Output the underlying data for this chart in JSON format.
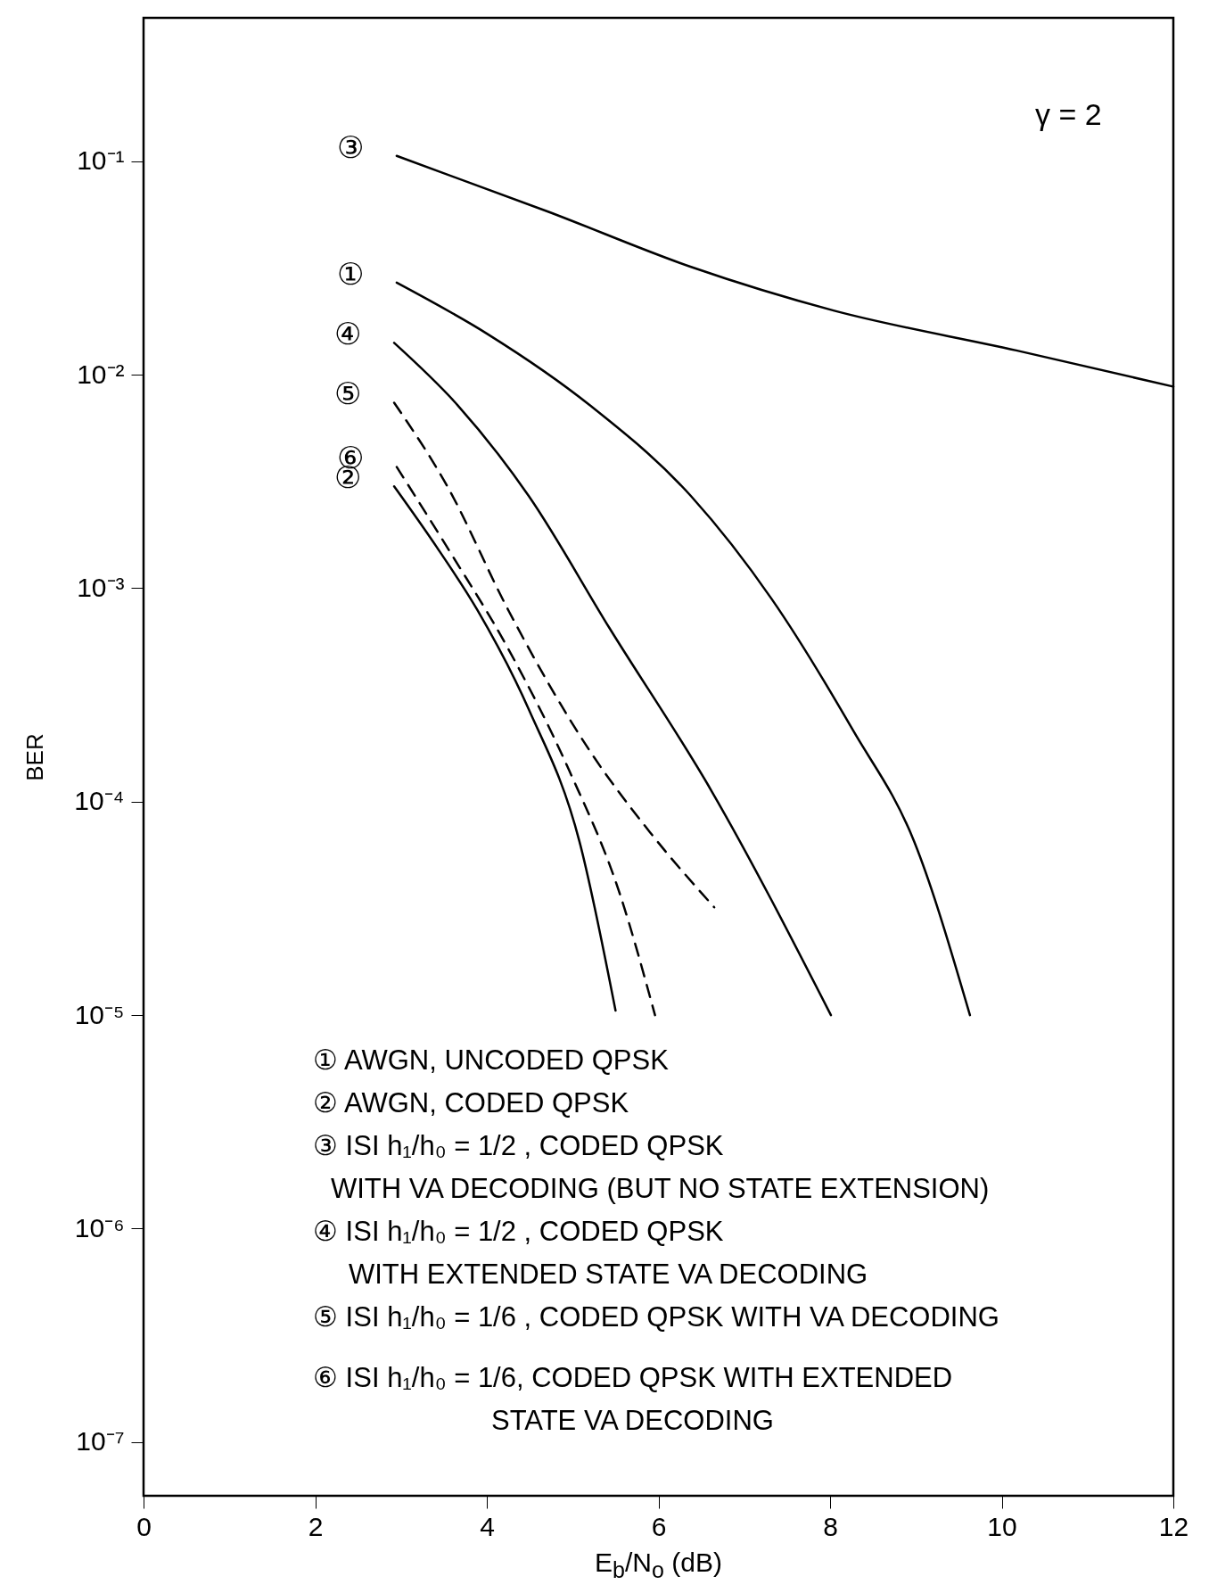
{
  "chart_data": {
    "type": "line",
    "xlabel": "E$_{b}$/N$_{o}$ (dB)",
    "ylabel": "BER",
    "log": "y",
    "xlim": [
      0,
      12
    ],
    "xticks": [
      0,
      2,
      4,
      6,
      8,
      10,
      12
    ],
    "ylim": [
      5.6e-08,
      0.47
    ],
    "yticks": [
      {
        "value": 1e-07,
        "label": "10⁻⁷"
      },
      {
        "value": 1e-06,
        "label": "10⁻⁶"
      },
      {
        "value": 1e-05,
        "label": "10⁻⁵"
      },
      {
        "value": 0.0001,
        "label": "10⁻⁴"
      },
      {
        "value": 0.001,
        "label": "10⁻³"
      },
      {
        "value": 0.01,
        "label": "10⁻²"
      },
      {
        "value": 0.1,
        "label": "10⁻¹"
      }
    ],
    "grid": false,
    "marker": "none",
    "series": [
      {
        "name": "③",
        "color": "#000000",
        "line_style": "solid",
        "x": [
          2.95,
          4.72,
          6.38,
          8.04,
          10.17,
          12
        ],
        "values": [
          0.106,
          0.058,
          0.032,
          0.02,
          0.013,
          0.0088
        ]
      },
      {
        "name": "①",
        "color": "#000000",
        "line_style": "solid",
        "x": [
          2.95,
          4.01,
          5.2,
          6.38,
          7.32,
          8.27,
          8.98,
          9.63
        ],
        "values": [
          0.027,
          0.0155,
          0.0072,
          0.0027,
          0.00089,
          0.000215,
          6.5e-05,
          1e-05
        ]
      },
      {
        "name": "④",
        "color": "#000000",
        "line_style": "solid",
        "x": [
          2.92,
          3.66,
          4.49,
          5.43,
          6.62,
          8.01
        ],
        "values": [
          0.0141,
          0.0072,
          0.0027,
          0.00065,
          0.000112,
          1e-05
        ]
      },
      {
        "name": "⑤",
        "color": "#000000",
        "line_style": "dashed",
        "x": [
          2.92,
          3.54,
          4.25,
          5.2,
          5.9,
          6.65
        ],
        "values": [
          0.0074,
          0.003,
          0.00079,
          0.000173,
          7.2e-05,
          3.2e-05
        ]
      },
      {
        "name": "⑥",
        "color": "#000000",
        "line_style": "dashed",
        "x": [
          2.95,
          3.54,
          4.25,
          4.96,
          5.55,
          5.96
        ],
        "values": [
          0.0037,
          0.00155,
          0.00052,
          0.00014,
          3.7e-05,
          1e-05
        ]
      },
      {
        "name": "②",
        "color": "#000000",
        "line_style": "solid",
        "x": [
          2.92,
          3.42,
          3.89,
          4.49,
          5.08,
          5.5
        ],
        "values": [
          0.003,
          0.00155,
          0.00079,
          0.00027,
          6.5e-05,
          1.05e-05
        ]
      }
    ],
    "annotations": [
      "γ = 2",
      "① AWGN, UNCODED QPSK",
      "② AWGN, CODED QPSK",
      "③ ISI h₁/h₀ = 1/2 , CODED QPSK",
      "WITH VA DECODING (BUT NO STATE EXTENSION)",
      "④ ISI h₁/h₀ = 1/2 , CODED QPSK",
      "WITH EXTENDED STATE VA DECODING",
      "⑤ ISI h₁/h₀ = 1/6 , CODED QPSK WITH VA DECODING",
      "⑥ ISI h₁/h₀ = 1/6, CODED QPSK WITH EXTENDED",
      "STATE VA DECODING"
    ]
  }
}
